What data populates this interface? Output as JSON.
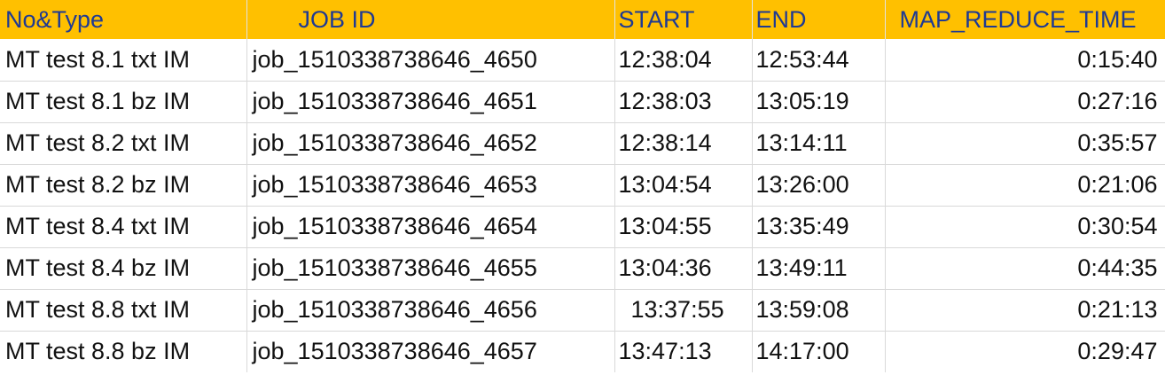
{
  "headers": {
    "no_type": "No&Type",
    "job_id": "JOB ID",
    "start": "START",
    "end": "END",
    "map_reduce_time": "MAP_REDUCE_TIME"
  },
  "rows": [
    {
      "no_type": "MT test 8.1 txt IM",
      "job_id": "job_1510338738646_4650",
      "start": "12:38:04",
      "end": "12:53:44",
      "map_reduce_time": "0:15:40"
    },
    {
      "no_type": "MT test 8.1 bz IM",
      "job_id": "job_1510338738646_4651",
      "start": "12:38:03",
      "end": "13:05:19",
      "map_reduce_time": "0:27:16"
    },
    {
      "no_type": "MT test 8.2 txt IM",
      "job_id": "job_1510338738646_4652",
      "start": "12:38:14",
      "end": "13:14:11",
      "map_reduce_time": "0:35:57"
    },
    {
      "no_type": "MT test 8.2 bz IM",
      "job_id": "job_1510338738646_4653",
      "start": "13:04:54",
      "end": "13:26:00",
      "map_reduce_time": "0:21:06"
    },
    {
      "no_type": "MT test 8.4 txt IM",
      "job_id": "job_1510338738646_4654",
      "start": "13:04:55",
      "end": "13:35:49",
      "map_reduce_time": "0:30:54"
    },
    {
      "no_type": "MT test 8.4 bz IM",
      "job_id": "job_1510338738646_4655",
      "start": "13:04:36",
      "end": "13:49:11",
      "map_reduce_time": "0:44:35"
    },
    {
      "no_type": "MT test 8.8 txt IM",
      "job_id": "job_1510338738646_4656",
      "start": "13:37:55",
      "end": "13:59:08",
      "map_reduce_time": "0:21:13"
    },
    {
      "no_type": "MT test 8.8 bz IM",
      "job_id": "job_1510338738646_4657",
      "start": "13:47:13",
      "end": "14:17:00",
      "map_reduce_time": "0:29:47"
    }
  ],
  "colors": {
    "header_background": "#ffc000",
    "header_text": "#1f3a93"
  }
}
